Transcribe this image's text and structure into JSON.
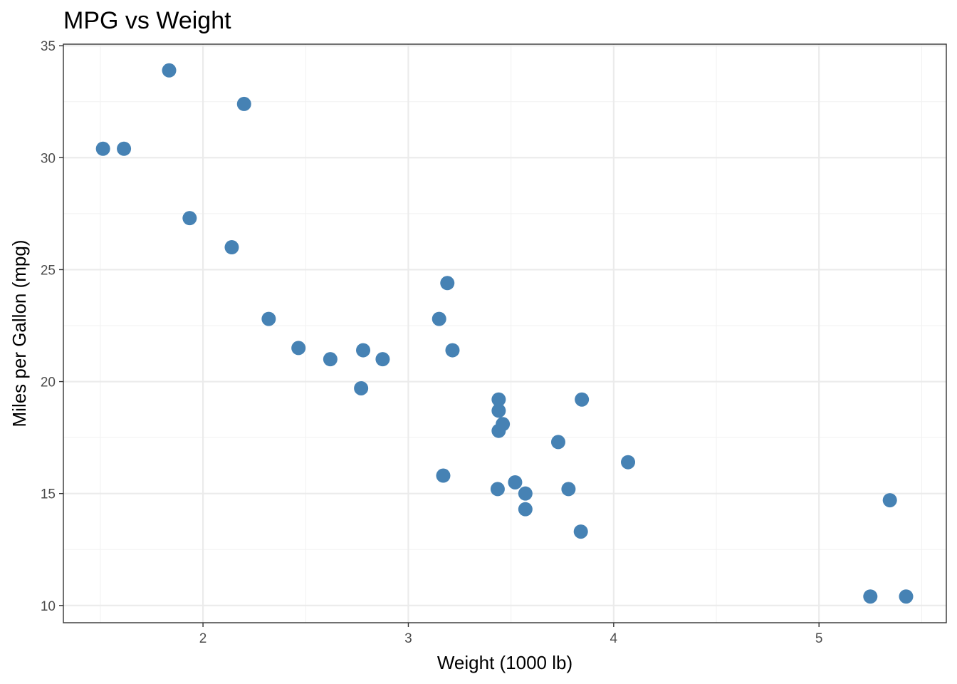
{
  "chart_data": {
    "type": "scatter",
    "title": "MPG vs Weight",
    "xlabel": "Weight (1000 lb)",
    "ylabel": "Miles per Gallon (mpg)",
    "xlim": [
      1.32,
      5.62
    ],
    "ylim": [
      9.23,
      35.07
    ],
    "x_ticks": [
      2,
      3,
      4,
      5
    ],
    "y_ticks": [
      10,
      15,
      20,
      25,
      30,
      35
    ],
    "x_tick_labels": [
      "2",
      "3",
      "4",
      "5"
    ],
    "y_tick_labels": [
      "10",
      "15",
      "20",
      "25",
      "30",
      "35"
    ],
    "x_minor": [
      1.5,
      2.5,
      3.5,
      4.5,
      5.5
    ],
    "y_minor": [
      12.5,
      17.5,
      22.5,
      27.5,
      32.5
    ],
    "grid": true,
    "point_color": "#4682B4",
    "points": [
      {
        "x": 2.62,
        "y": 21.0
      },
      {
        "x": 2.875,
        "y": 21.0
      },
      {
        "x": 2.32,
        "y": 22.8
      },
      {
        "x": 3.215,
        "y": 21.4
      },
      {
        "x": 3.44,
        "y": 18.7
      },
      {
        "x": 3.46,
        "y": 18.1
      },
      {
        "x": 3.57,
        "y": 14.3
      },
      {
        "x": 3.19,
        "y": 24.4
      },
      {
        "x": 3.15,
        "y": 22.8
      },
      {
        "x": 3.44,
        "y": 19.2
      },
      {
        "x": 3.44,
        "y": 17.8
      },
      {
        "x": 4.07,
        "y": 16.4
      },
      {
        "x": 3.73,
        "y": 17.3
      },
      {
        "x": 3.78,
        "y": 15.2
      },
      {
        "x": 5.25,
        "y": 10.4
      },
      {
        "x": 5.424,
        "y": 10.4
      },
      {
        "x": 5.345,
        "y": 14.7
      },
      {
        "x": 2.2,
        "y": 32.4
      },
      {
        "x": 1.615,
        "y": 30.4
      },
      {
        "x": 1.835,
        "y": 33.9
      },
      {
        "x": 2.465,
        "y": 21.5
      },
      {
        "x": 3.52,
        "y": 15.5
      },
      {
        "x": 3.435,
        "y": 15.2
      },
      {
        "x": 3.84,
        "y": 13.3
      },
      {
        "x": 3.845,
        "y": 19.2
      },
      {
        "x": 1.935,
        "y": 27.3
      },
      {
        "x": 2.14,
        "y": 26.0
      },
      {
        "x": 1.513,
        "y": 30.4
      },
      {
        "x": 3.17,
        "y": 15.8
      },
      {
        "x": 2.77,
        "y": 19.7
      },
      {
        "x": 3.57,
        "y": 15.0
      },
      {
        "x": 2.78,
        "y": 21.4
      }
    ]
  }
}
